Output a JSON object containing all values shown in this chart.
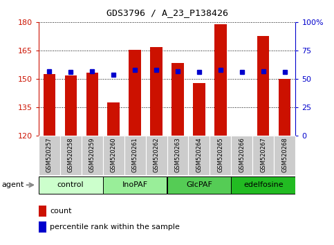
{
  "title": "GDS3796 / A_23_P138426",
  "samples": [
    "GSM520257",
    "GSM520258",
    "GSM520259",
    "GSM520260",
    "GSM520261",
    "GSM520262",
    "GSM520263",
    "GSM520264",
    "GSM520265",
    "GSM520266",
    "GSM520267",
    "GSM520268"
  ],
  "bar_values": [
    152.5,
    152.0,
    153.5,
    137.5,
    165.5,
    167.0,
    158.5,
    148.0,
    179.0,
    120.0,
    172.5,
    150.0
  ],
  "percentile_values": [
    57,
    56,
    57,
    54,
    58,
    58,
    57,
    56,
    58,
    56,
    57,
    56
  ],
  "bar_color": "#cc1100",
  "dot_color": "#0000cc",
  "ylim_left": [
    120,
    180
  ],
  "ylim_right": [
    0,
    100
  ],
  "yticks_left": [
    120,
    135,
    150,
    165,
    180
  ],
  "yticks_right": [
    0,
    25,
    50,
    75,
    100
  ],
  "groups": [
    {
      "label": "control",
      "start": 0,
      "end": 3,
      "color": "#ccffcc"
    },
    {
      "label": "InoPAF",
      "start": 3,
      "end": 6,
      "color": "#99ee99"
    },
    {
      "label": "GlcPAF",
      "start": 6,
      "end": 9,
      "color": "#55cc55"
    },
    {
      "label": "edelfosine",
      "start": 9,
      "end": 12,
      "color": "#22bb22"
    }
  ],
  "legend_count_label": "count",
  "legend_pct_label": "percentile rank within the sample",
  "agent_label": "agent",
  "background_color": "#ffffff",
  "sample_box_color": "#cccccc",
  "grid_color": "#000000",
  "right_axis_label": "100%"
}
